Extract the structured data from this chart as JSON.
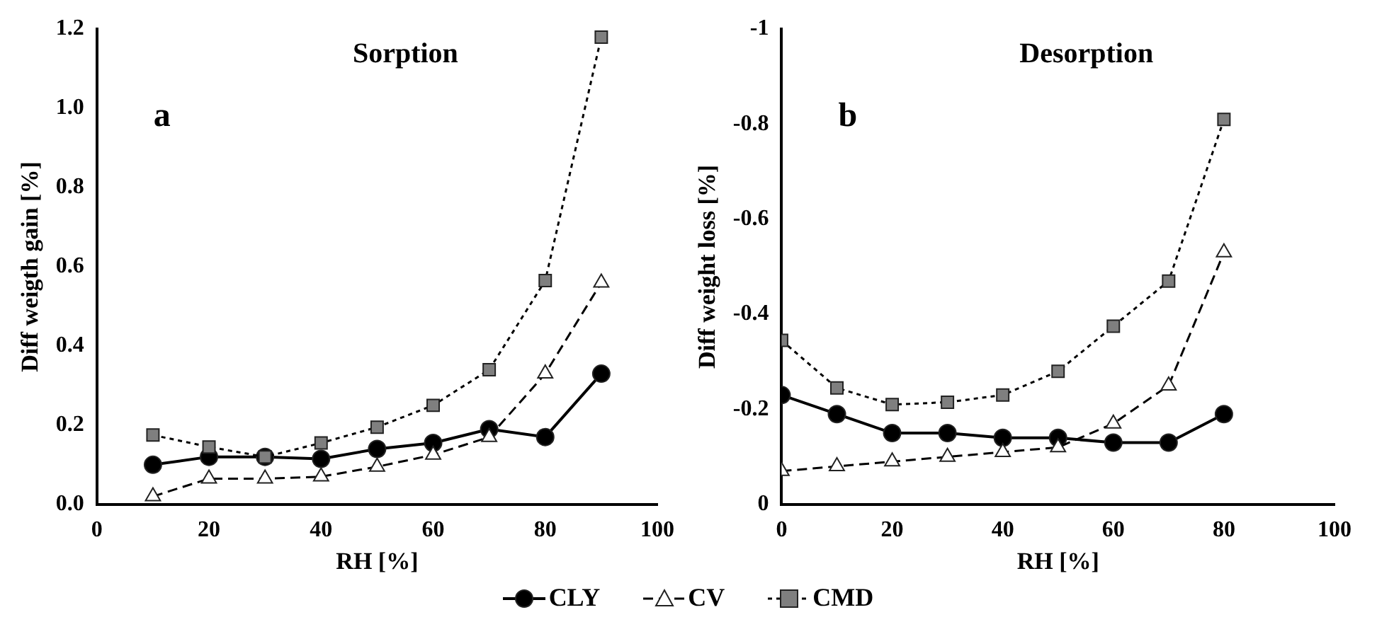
{
  "chart_data": [
    {
      "type": "line",
      "title": "Sorption",
      "xlabel": "RH [%]",
      "ylabel": "Diff weigth gain [%]",
      "annotations": [
        "a"
      ],
      "x": [
        10,
        20,
        30,
        40,
        50,
        60,
        70,
        80,
        90
      ],
      "series": [
        {
          "name": "CLY",
          "color": "#000000",
          "marker": "circle",
          "line_style": "solid",
          "values": [
            0.1,
            0.12,
            0.12,
            0.115,
            0.14,
            0.155,
            0.19,
            0.17,
            0.33
          ]
        },
        {
          "name": "CV",
          "color": "#ffffff",
          "marker": "triangle",
          "line_style": "dashed",
          "values": [
            0.02,
            0.065,
            0.065,
            0.07,
            0.095,
            0.125,
            0.17,
            0.33,
            0.56
          ]
        },
        {
          "name": "CMD",
          "color": "#7f7f7f",
          "marker": "square",
          "line_style": "dotted",
          "values": [
            0.175,
            0.145,
            0.12,
            0.155,
            0.195,
            0.25,
            0.34,
            0.565,
            1.18
          ]
        }
      ],
      "xlim": [
        0,
        100
      ],
      "xticks": [
        0,
        20,
        40,
        60,
        80,
        100
      ],
      "ylim": [
        0,
        1.2
      ],
      "yticks": [
        {
          "value": 0,
          "label": "0.0"
        },
        {
          "value": 0.2,
          "label": "0.2"
        },
        {
          "value": 0.4,
          "label": "0.4"
        },
        {
          "value": 0.6,
          "label": "0.6"
        },
        {
          "value": 0.8,
          "label": "0.8"
        },
        {
          "value": 1,
          "label": "1.0"
        },
        {
          "value": 1.2,
          "label": "1.2"
        }
      ],
      "grid": false,
      "legend": "bottom"
    },
    {
      "type": "line",
      "title": "Desorption",
      "xlabel": "RH [%]",
      "ylabel": "Diff weight loss [%]",
      "annotations": [
        "b"
      ],
      "x": [
        0,
        10,
        20,
        30,
        40,
        50,
        60,
        70,
        80
      ],
      "series": [
        {
          "color": "#000000",
          "marker": "circle",
          "line_style": "solid",
          "values": [
            -0.23,
            -0.19,
            -0.15,
            -0.15,
            -0.14,
            -0.14,
            -0.13,
            -0.13,
            -0.19
          ]
        },
        {
          "color": "#ffffff",
          "marker": "triangle",
          "line_style": "dashed",
          "values": [
            -0.07,
            -0.08,
            -0.09,
            -0.1,
            -0.11,
            -0.12,
            -0.17,
            -0.25,
            -0.53
          ]
        },
        {
          "color": "#7f7f7f",
          "marker": "square",
          "line_style": "dotted",
          "values": [
            -0.345,
            -0.245,
            -0.21,
            -0.215,
            -0.23,
            -0.28,
            -0.375,
            -0.47,
            -0.81
          ]
        }
      ],
      "xlim": [
        0,
        100
      ],
      "xticks": [
        0,
        20,
        40,
        60,
        80,
        100
      ],
      "ylim": [
        0,
        -1
      ],
      "yticks": [
        0,
        -0.2,
        -0.4,
        -0.6,
        -0.8,
        -1
      ],
      "grid": false
    }
  ]
}
